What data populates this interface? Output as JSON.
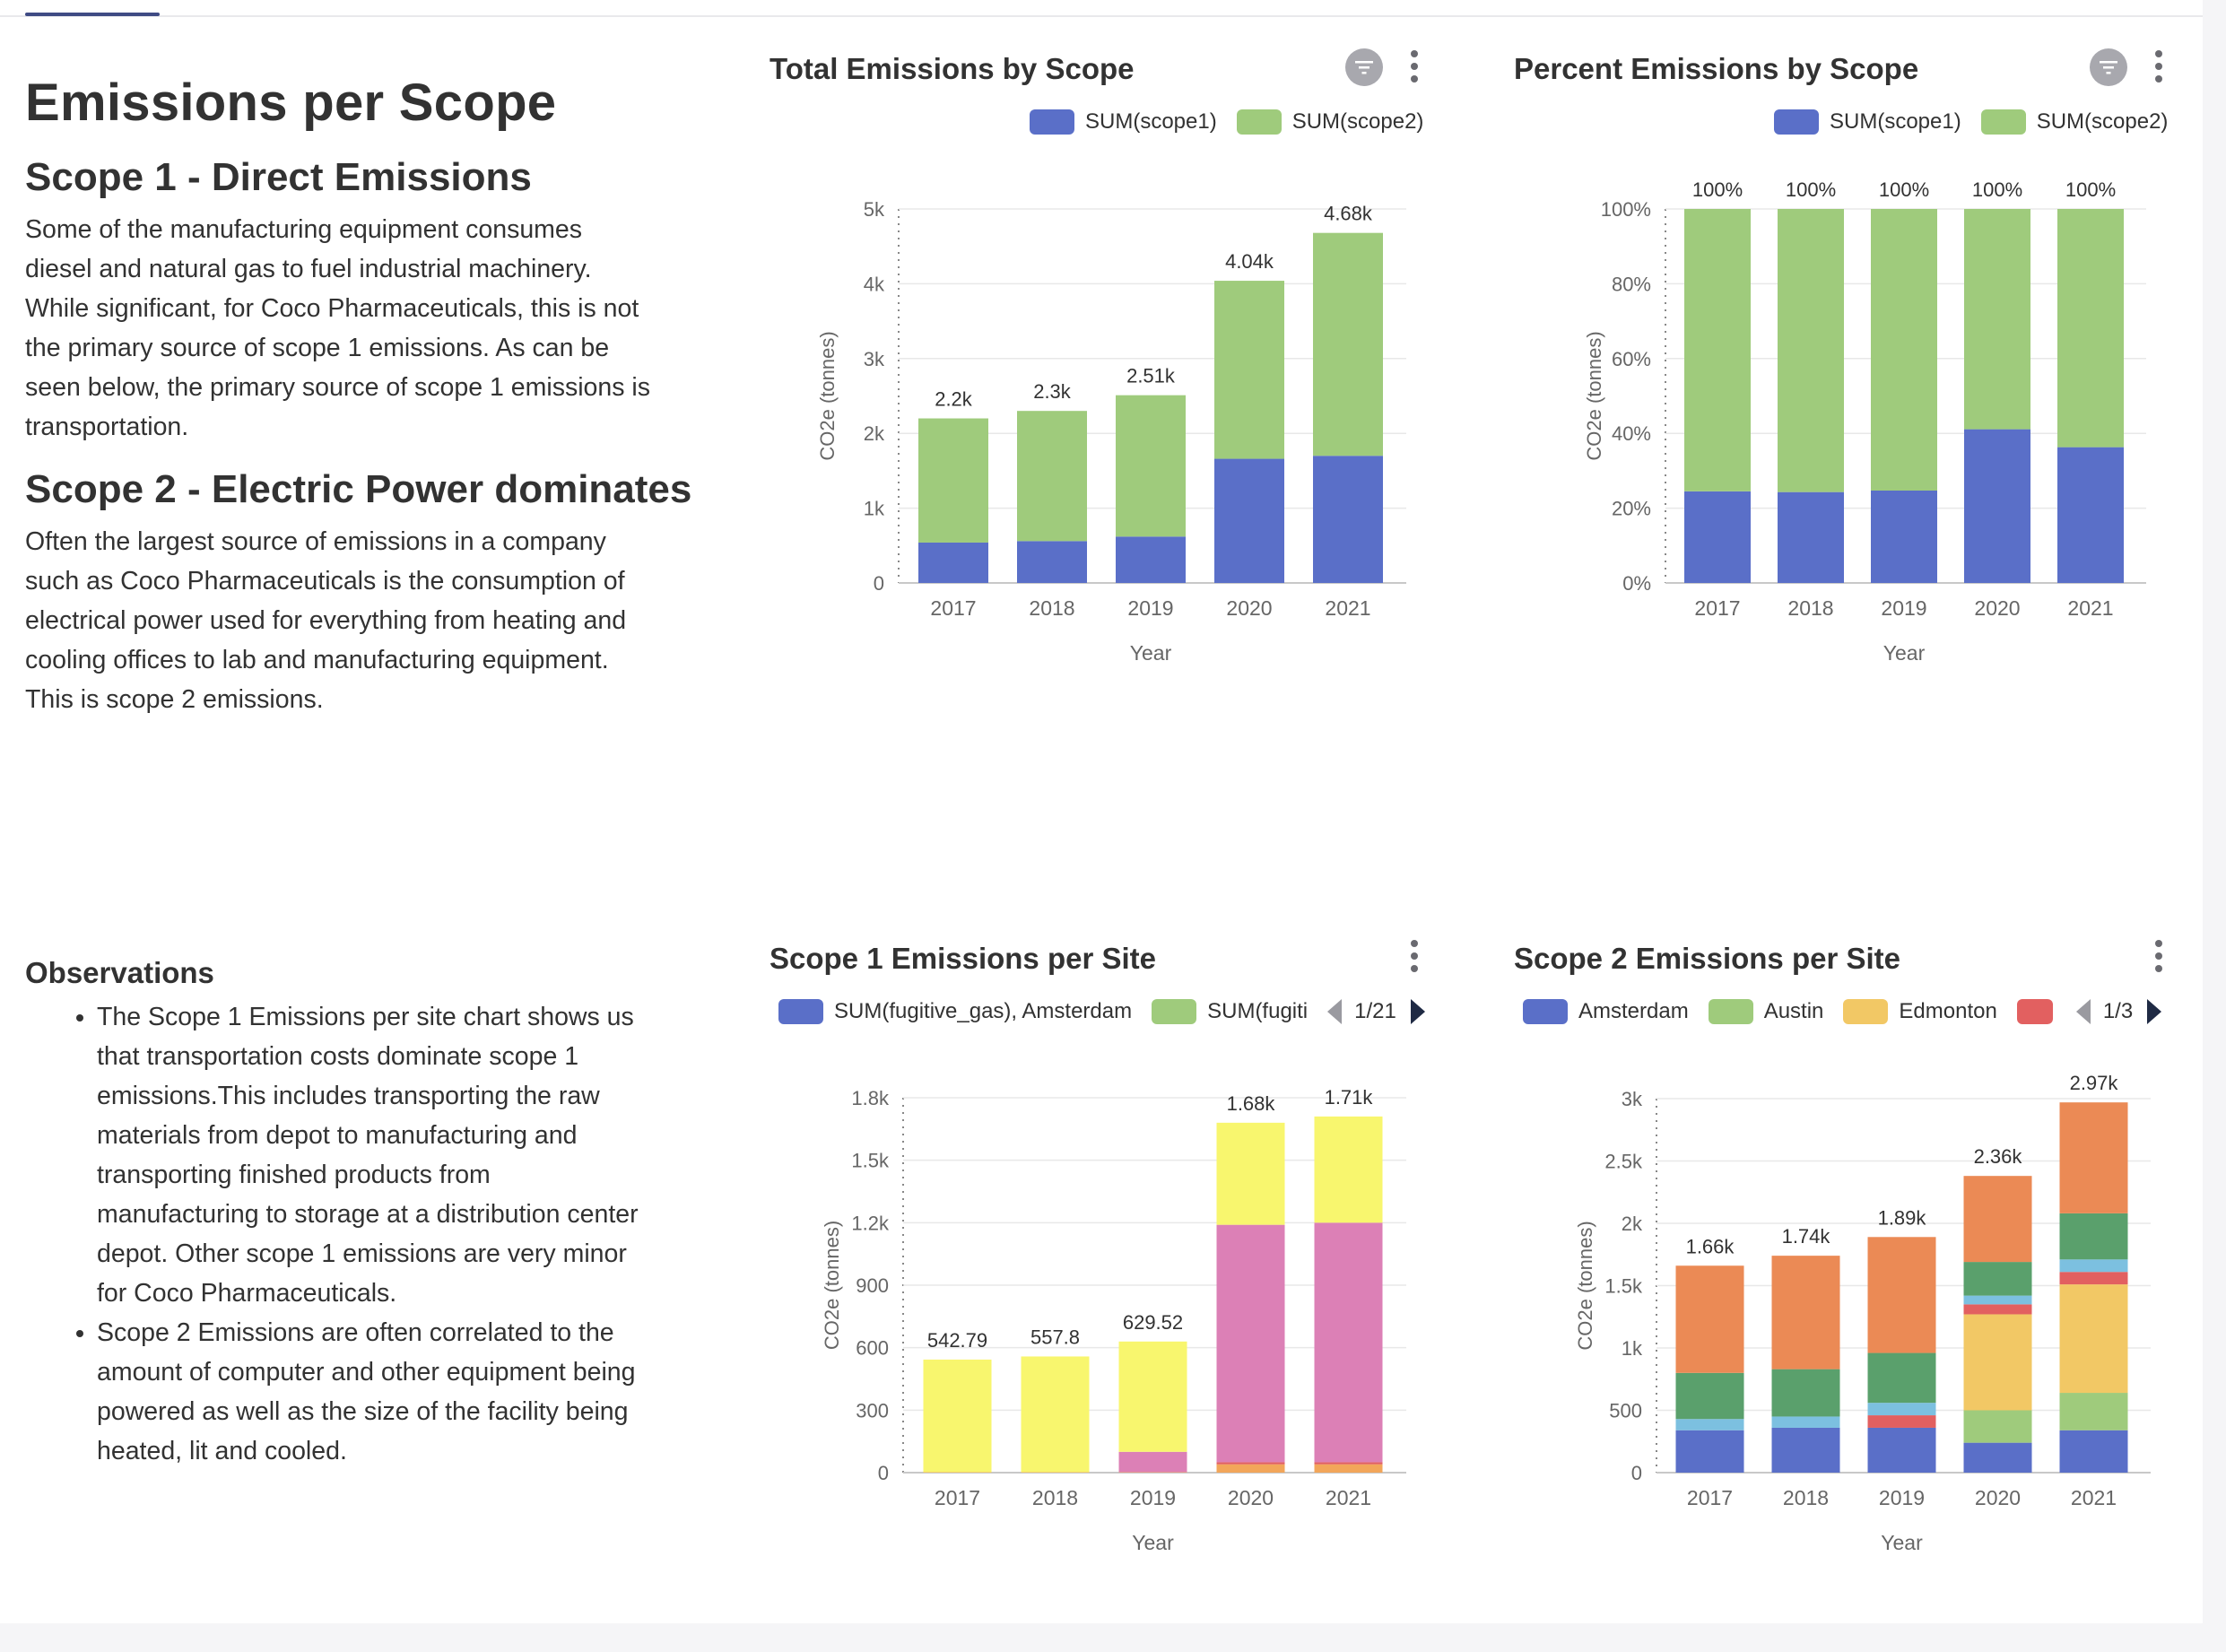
{
  "markdown": {
    "title": "Emissions per Scope",
    "scope1_heading": "Scope 1 - Direct Emissions",
    "scope1_lines": [
      "Some of the manufacturing equipment consumes",
      "diesel and natural gas to fuel industrial machinery.",
      "While significant, for Coco Pharmaceuticals, this is not",
      "the primary source of scope 1 emissions. As can be",
      "seen below, the primary source of scope 1 emissions is",
      "transportation."
    ],
    "scope2_heading": "Scope 2 - Electric Power dominates",
    "scope2_lines": [
      "Often the largest source of emissions in a company",
      "such as Coco Pharmaceuticals is the consumption of",
      "electrical power used for everything from heating and",
      "cooling offices to lab and manufacturing equipment.",
      "This is scope 2 emissions."
    ],
    "observations_heading": "Observations",
    "bullet1_lines": [
      "The Scope 1 Emissions per site chart shows us",
      "that transportation costs dominate scope 1",
      "emissions.This includes transporting the raw",
      "materials from depot to manufacturing and",
      "transporting finished products from",
      "manufacturing to storage at a distribution center",
      "depot. Other scope 1 emissions are very minor",
      "for Coco Pharmaceuticals."
    ],
    "bullet2_lines": [
      "Scope 2 Emissions are often correlated to the",
      "amount of computer and other equipment being",
      "powered as well as the size of the facility being",
      "heated, lit and cooled."
    ]
  },
  "colors": {
    "blue": "#5a6fc8",
    "green": "#9fcb7c",
    "yellow": "#f8f66e",
    "pink": "#dc80b6",
    "orange": "#eb8a55",
    "darkgreen": "#5aa06c",
    "lightblue": "#7cc0e0",
    "red": "#e26060",
    "gold": "#f2c865",
    "lightorange": "#f2a65a"
  },
  "chart_data": [
    {
      "id": "total",
      "type": "bar",
      "stacked": true,
      "title": "Total Emissions by Scope",
      "legend": [
        "SUM(scope1)",
        "SUM(scope2)"
      ],
      "xlabel": "Year",
      "ylabel": "CO2e (tonnes)",
      "categories": [
        "2017",
        "2018",
        "2019",
        "2020",
        "2021"
      ],
      "ylim": [
        0,
        5000
      ],
      "yticks": [
        "0",
        "1k",
        "2k",
        "3k",
        "4k",
        "5k"
      ],
      "series": [
        {
          "name": "SUM(scope1)",
          "color": "blue",
          "values": [
            540,
            560,
            620,
            1660,
            1700
          ]
        },
        {
          "name": "SUM(scope2)",
          "color": "green",
          "values": [
            1660,
            1740,
            1890,
            2380,
            2980
          ]
        }
      ],
      "data_labels": [
        "2.2k",
        "2.3k",
        "2.51k",
        "4.04k",
        "4.68k"
      ]
    },
    {
      "id": "percent",
      "type": "bar",
      "stacked": true,
      "title": "Percent Emissions by Scope",
      "legend": [
        "SUM(scope1)",
        "SUM(scope2)"
      ],
      "xlabel": "Year",
      "ylabel": "CO2e (tonnes)",
      "categories": [
        "2017",
        "2018",
        "2019",
        "2020",
        "2021"
      ],
      "ylim": [
        0,
        100
      ],
      "yticks": [
        "0%",
        "20%",
        "40%",
        "60%",
        "80%",
        "100%"
      ],
      "series": [
        {
          "name": "SUM(scope1)",
          "color": "blue",
          "values": [
            24.5,
            24.3,
            24.7,
            41.1,
            36.3
          ]
        },
        {
          "name": "SUM(scope2)",
          "color": "green",
          "values": [
            75.5,
            75.7,
            75.3,
            58.9,
            63.7
          ]
        }
      ],
      "data_labels": [
        "100%",
        "100%",
        "100%",
        "100%",
        "100%"
      ]
    },
    {
      "id": "scope1site",
      "type": "bar",
      "stacked": true,
      "title": "Scope 1 Emissions per Site",
      "legend": [
        "SUM(fugitive_gas), Amsterdam",
        "SUM(fugiti"
      ],
      "pager": "1/21",
      "xlabel": "Year",
      "ylabel": "CO2e (tonnes)",
      "categories": [
        "2017",
        "2018",
        "2019",
        "2020",
        "2021"
      ],
      "ylim": [
        0,
        1800
      ],
      "yticks": [
        "0",
        "300",
        "600",
        "900",
        "1.2k",
        "1.5k",
        "1.8k"
      ],
      "series": [
        {
          "color": "lightorange",
          "values": [
            2,
            2,
            2,
            40,
            40
          ]
        },
        {
          "color": "red",
          "values": [
            0,
            0,
            0,
            10,
            10
          ]
        },
        {
          "color": "pink",
          "values": [
            0,
            0,
            98,
            1140,
            1150
          ]
        },
        {
          "color": "yellow",
          "values": [
            540.79,
            555.8,
            529.52,
            490,
            510
          ]
        }
      ],
      "data_labels": [
        "542.79",
        "557.8",
        "629.52",
        "1.68k",
        "1.71k"
      ]
    },
    {
      "id": "scope2site",
      "type": "bar",
      "stacked": true,
      "title": "Scope 2 Emissions per Site",
      "legend": [
        "Amsterdam",
        "Austin",
        "Edmonton",
        ""
      ],
      "pager": "1/3",
      "xlabel": "Year",
      "ylabel": "CO2e (tonnes)",
      "categories": [
        "2017",
        "2018",
        "2019",
        "2020",
        "2021"
      ],
      "ylim": [
        0,
        3000
      ],
      "yticks": [
        "0",
        "500",
        "1k",
        "1.5k",
        "2k",
        "2.5k",
        "3k"
      ],
      "series": [
        {
          "name": "Amsterdam",
          "color": "blue",
          "values": [
            340,
            360,
            360,
            240,
            340
          ]
        },
        {
          "name": "Austin",
          "color": "green",
          "values": [
            0,
            0,
            0,
            260,
            300
          ]
        },
        {
          "name": "Edmonton",
          "color": "gold",
          "values": [
            0,
            0,
            0,
            770,
            870
          ]
        },
        {
          "color": "red",
          "values": [
            0,
            0,
            100,
            80,
            100
          ]
        },
        {
          "color": "lightblue",
          "values": [
            90,
            90,
            100,
            70,
            100
          ]
        },
        {
          "color": "darkgreen",
          "values": [
            370,
            380,
            400,
            270,
            370
          ]
        },
        {
          "color": "orange",
          "values": [
            860,
            910,
            930,
            690,
            890
          ]
        }
      ],
      "data_labels": [
        "1.66k",
        "1.74k",
        "1.89k",
        "2.36k",
        "2.97k"
      ]
    }
  ]
}
